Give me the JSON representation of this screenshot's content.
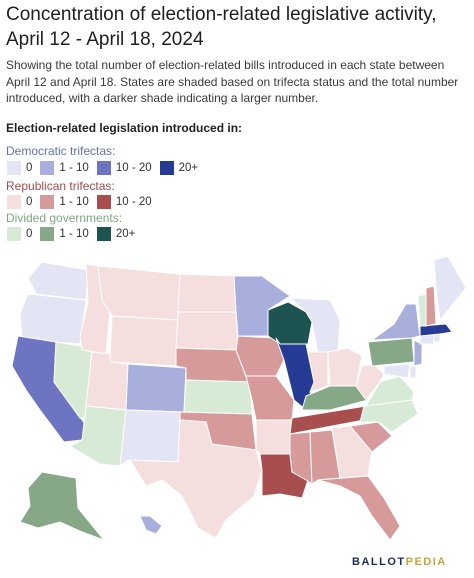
{
  "title": "Concentration of election-related legislative activity, April 12 - April 18, 2024",
  "subtitle": "Showing the total number of election-related bills introduced in each state between April 12 and April 18. States are shaded based on trifecta status and the total number introduced, with a darker shade indicating a larger number.",
  "legend": {
    "heading": "Election-related legislation introduced in:",
    "democratic": {
      "label": "Democratic trifectas:",
      "items": [
        {
          "label": "0",
          "color": "#e3e5f5"
        },
        {
          "label": "1 - 10",
          "color": "#a9afdc"
        },
        {
          "label": "10 - 20",
          "color": "#6d74c1"
        },
        {
          "label": "20+",
          "color": "#263b94"
        }
      ]
    },
    "republican": {
      "label": "Republican trifectas:",
      "items": [
        {
          "label": "0",
          "color": "#f5dede"
        },
        {
          "label": "1 - 10",
          "color": "#d79a9a"
        },
        {
          "label": "10 - 20",
          "color": "#a84e4e"
        }
      ]
    },
    "divided": {
      "label": "Divided governments:",
      "items": [
        {
          "label": "0",
          "color": "#d6ead6"
        },
        {
          "label": "1 - 10",
          "color": "#86a886"
        },
        {
          "label": "20+",
          "color": "#1d5350"
        }
      ]
    }
  },
  "states": [
    {
      "name": "WA",
      "category": "dem-0"
    },
    {
      "name": "OR",
      "category": "dem-0"
    },
    {
      "name": "CA",
      "category": "dem-10-20"
    },
    {
      "name": "NV",
      "category": "div-0"
    },
    {
      "name": "ID",
      "category": "rep-0"
    },
    {
      "name": "MT",
      "category": "rep-0"
    },
    {
      "name": "WY",
      "category": "rep-0"
    },
    {
      "name": "UT",
      "category": "rep-0"
    },
    {
      "name": "AZ",
      "category": "div-0"
    },
    {
      "name": "CO",
      "category": "dem-1-10"
    },
    {
      "name": "NM",
      "category": "dem-0"
    },
    {
      "name": "ND",
      "category": "rep-0"
    },
    {
      "name": "SD",
      "category": "rep-0"
    },
    {
      "name": "NE",
      "category": "rep-1-10"
    },
    {
      "name": "KS",
      "category": "div-0"
    },
    {
      "name": "OK",
      "category": "rep-1-10"
    },
    {
      "name": "TX",
      "category": "rep-0"
    },
    {
      "name": "MN",
      "category": "dem-1-10"
    },
    {
      "name": "IA",
      "category": "rep-1-10"
    },
    {
      "name": "MO",
      "category": "rep-1-10"
    },
    {
      "name": "AR",
      "category": "rep-0"
    },
    {
      "name": "LA",
      "category": "rep-10-20"
    },
    {
      "name": "WI",
      "category": "div-20+"
    },
    {
      "name": "IL",
      "category": "dem-20+"
    },
    {
      "name": "MI",
      "category": "dem-0"
    },
    {
      "name": "IN",
      "category": "rep-0"
    },
    {
      "name": "OH",
      "category": "rep-0"
    },
    {
      "name": "KY",
      "category": "div-1-10"
    },
    {
      "name": "TN",
      "category": "rep-10-20"
    },
    {
      "name": "MS",
      "category": "rep-1-10"
    },
    {
      "name": "AL",
      "category": "rep-1-10"
    },
    {
      "name": "GA",
      "category": "rep-0"
    },
    {
      "name": "FL",
      "category": "rep-1-10"
    },
    {
      "name": "SC",
      "category": "rep-1-10"
    },
    {
      "name": "NC",
      "category": "div-0"
    },
    {
      "name": "VA",
      "category": "div-0"
    },
    {
      "name": "WV",
      "category": "rep-0"
    },
    {
      "name": "PA",
      "category": "div-1-10"
    },
    {
      "name": "NY",
      "category": "dem-1-10"
    },
    {
      "name": "NJ",
      "category": "dem-1-10"
    },
    {
      "name": "DE",
      "category": "dem-0"
    },
    {
      "name": "MD",
      "category": "dem-0"
    },
    {
      "name": "CT",
      "category": "dem-0"
    },
    {
      "name": "RI",
      "category": "dem-0"
    },
    {
      "name": "MA",
      "category": "dem-20+"
    },
    {
      "name": "VT",
      "category": "div-0"
    },
    {
      "name": "NH",
      "category": "rep-1-10"
    },
    {
      "name": "ME",
      "category": "dem-0"
    },
    {
      "name": "AK",
      "category": "div-1-10"
    },
    {
      "name": "HI",
      "category": "dem-1-10"
    }
  ],
  "brand": {
    "part1": "BALLOT",
    "part2": "PEDIA"
  }
}
